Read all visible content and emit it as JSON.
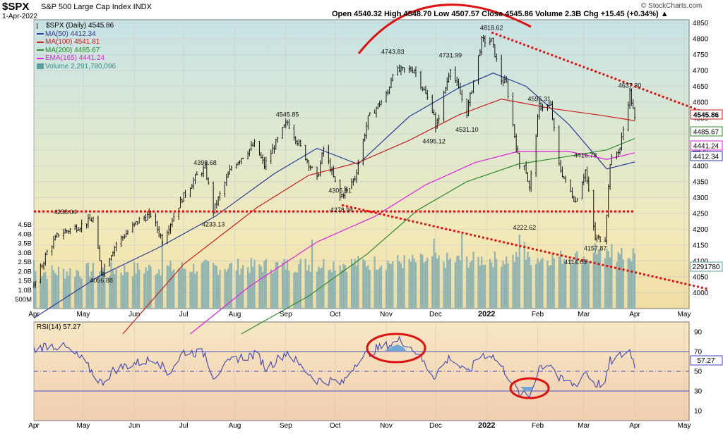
{
  "header": {
    "symbol": "$SPX",
    "name": "S&P 500 Large Cap Index INDX",
    "date": "1-Apr-2022",
    "ohlc": "Open 4540.32  High 4548.70  Low 4507.57  Close 4545.86  Volume 2.3B  Chg +15.45 (+0.34%) ▲",
    "credit": "© StockCharts.com"
  },
  "legend": [
    {
      "text": "$SPX (Daily) 4545.86",
      "color": "#000000",
      "swatch": "bar"
    },
    {
      "text": "MA(50) 4412.34",
      "color": "#2a3b9c",
      "swatch": "line"
    },
    {
      "text": "MA(100) 4541.81",
      "color": "#c81e1e",
      "swatch": "line"
    },
    {
      "text": "MA(200) 4485.67",
      "color": "#2e8b2e",
      "swatch": "line"
    },
    {
      "text": "EMA(165) 4441.24",
      "color": "#e020e0",
      "swatch": "line"
    },
    {
      "text": "Volume 2,291,780,096",
      "color": "#5f9ea0",
      "swatch": "block"
    }
  ],
  "rsi_label": "RSI(14) 57.27",
  "chart_data": [
    {
      "type": "line",
      "title": "$SPX S&P 500 Large Cap Index",
      "ylim": [
        3950,
        4860
      ],
      "x_ticks": [
        "Apr",
        "May",
        "Jun",
        "Jul",
        "Aug",
        "Sep",
        "Oct",
        "Nov",
        "Dec",
        "2022",
        "Feb",
        "Mar",
        "Apr",
        "May"
      ],
      "y_ticks": [
        4000,
        4050,
        4100,
        4150,
        4200,
        4250,
        4300,
        4350,
        4400,
        4450,
        4500,
        4550,
        4600,
        4650,
        4700,
        4750,
        4800,
        4850
      ],
      "price_series": {
        "name": "$SPX (Daily)",
        "points": [
          [
            "2021-04-01",
            4019
          ],
          [
            "2021-04-09",
            4128
          ],
          [
            "2021-04-16",
            4185
          ],
          [
            "2021-04-29",
            4211
          ],
          [
            "2021-05-07",
            4232
          ],
          [
            "2021-05-12",
            4063
          ],
          [
            "2021-05-21",
            4155
          ],
          [
            "2021-06-04",
            4229
          ],
          [
            "2021-06-11",
            4247
          ],
          [
            "2021-06-18",
            4166
          ],
          [
            "2021-06-30",
            4297
          ],
          [
            "2021-07-09",
            4369
          ],
          [
            "2021-07-14",
            4393
          ],
          [
            "2021-07-19",
            4258
          ],
          [
            "2021-07-30",
            4395
          ],
          [
            "2021-08-13",
            4468
          ],
          [
            "2021-08-19",
            4400
          ],
          [
            "2021-08-31",
            4522
          ],
          [
            "2021-09-02",
            4537
          ],
          [
            "2021-09-10",
            4458
          ],
          [
            "2021-09-20",
            4357
          ],
          [
            "2021-09-24",
            4455
          ],
          [
            "2021-10-04",
            4300
          ],
          [
            "2021-10-13",
            4363
          ],
          [
            "2021-10-21",
            4549
          ],
          [
            "2021-11-02",
            4630
          ],
          [
            "2021-11-05",
            4697
          ],
          [
            "2021-11-18",
            4704
          ],
          [
            "2021-11-30",
            4567
          ],
          [
            "2021-12-01",
            4513
          ],
          [
            "2021-12-10",
            4712
          ],
          [
            "2021-12-20",
            4568
          ],
          [
            "2021-12-29",
            4793
          ],
          [
            "2022-01-04",
            4793
          ],
          [
            "2022-01-10",
            4670
          ],
          [
            "2022-01-13",
            4659
          ],
          [
            "2022-01-21",
            4398
          ],
          [
            "2022-01-24",
            4410
          ],
          [
            "2022-01-27",
            4327
          ],
          [
            "2022-02-02",
            4589
          ],
          [
            "2022-02-09",
            4587
          ],
          [
            "2022-02-14",
            4401
          ],
          [
            "2022-02-18",
            4348
          ],
          [
            "2022-02-24",
            4288
          ],
          [
            "2022-03-02",
            4386
          ],
          [
            "2022-03-08",
            4170
          ],
          [
            "2022-03-14",
            4173
          ],
          [
            "2022-03-17",
            4411
          ],
          [
            "2022-03-23",
            4456
          ],
          [
            "2022-03-29",
            4631
          ],
          [
            "2022-04-01",
            4546
          ]
        ]
      },
      "moving_averages": [
        {
          "name": "MA(50)",
          "color": "#2a3b9c",
          "points": [
            [
              "2021-04-01",
              3920
            ],
            [
              "2021-05-10",
              4050
            ],
            [
              "2021-06-15",
              4140
            ],
            [
              "2021-07-20",
              4240
            ],
            [
              "2021-08-25",
              4375
            ],
            [
              "2021-09-20",
              4455
            ],
            [
              "2021-10-15",
              4405
            ],
            [
              "2021-11-15",
              4555
            ],
            [
              "2021-12-15",
              4645
            ],
            [
              "2022-01-05",
              4692
            ],
            [
              "2022-01-25",
              4650
            ],
            [
              "2022-02-20",
              4530
            ],
            [
              "2022-03-15",
              4390
            ],
            [
              "2022-04-01",
              4412
            ]
          ]
        },
        {
          "name": "MA(100)",
          "color": "#c81e1e",
          "points": [
            [
              "2021-05-25",
              3870
            ],
            [
              "2021-07-01",
              4090
            ],
            [
              "2021-08-15",
              4270
            ],
            [
              "2021-09-15",
              4370
            ],
            [
              "2021-10-15",
              4410
            ],
            [
              "2021-11-15",
              4480
            ],
            [
              "2021-12-15",
              4560
            ],
            [
              "2022-01-10",
              4610
            ],
            [
              "2022-02-10",
              4580
            ],
            [
              "2022-03-10",
              4560
            ],
            [
              "2022-04-01",
              4542
            ]
          ]
        },
        {
          "name": "MA(200)",
          "color": "#2e8b2e",
          "points": [
            [
              "2021-08-05",
              3870
            ],
            [
              "2021-09-15",
              3990
            ],
            [
              "2021-10-20",
              4120
            ],
            [
              "2021-11-20",
              4260
            ],
            [
              "2021-12-20",
              4350
            ],
            [
              "2022-01-20",
              4405
            ],
            [
              "2022-02-20",
              4430
            ],
            [
              "2022-03-15",
              4450
            ],
            [
              "2022-04-01",
              4486
            ]
          ]
        },
        {
          "name": "EMA(165)",
          "color": "#e020e0",
          "points": [
            [
              "2021-07-05",
              3870
            ],
            [
              "2021-08-10",
              4020
            ],
            [
              "2021-09-20",
              4160
            ],
            [
              "2021-10-25",
              4240
            ],
            [
              "2021-11-25",
              4340
            ],
            [
              "2021-12-25",
              4410
            ],
            [
              "2022-01-20",
              4445
            ],
            [
              "2022-02-20",
              4445
            ],
            [
              "2022-03-15",
              4420
            ],
            [
              "2022-04-01",
              4441
            ]
          ]
        }
      ],
      "annotations": [
        {
          "date": "2021-04-20",
          "price": 4238.04,
          "label": "4238.04"
        },
        {
          "date": "2021-05-12",
          "price": 4056.88,
          "label": "4056.88"
        },
        {
          "date": "2021-07-14",
          "price": 4393.68,
          "label": "4393.68"
        },
        {
          "date": "2021-07-19",
          "price": 4233.13,
          "label": "4233.13"
        },
        {
          "date": "2021-09-02",
          "price": 4545.85,
          "label": "4545.85"
        },
        {
          "date": "2021-10-04",
          "price": 4305.91,
          "label": "4305.91"
        },
        {
          "date": "2021-10-05",
          "price": 4278.94,
          "label": "4278.94"
        },
        {
          "date": "2021-11-05",
          "price": 4743.83,
          "label": "4743.83"
        },
        {
          "date": "2021-11-30",
          "price": 4495.12,
          "label": "4495.12"
        },
        {
          "date": "2021-12-10",
          "price": 4731.99,
          "label": "4731.99"
        },
        {
          "date": "2021-12-20",
          "price": 4531.1,
          "label": "4531.10"
        },
        {
          "date": "2022-01-04",
          "price": 4818.62,
          "label": "4818.62"
        },
        {
          "date": "2022-01-24",
          "price": 4222.62,
          "label": "4222.62"
        },
        {
          "date": "2022-02-02",
          "price": 4595.31,
          "label": "4595.31"
        },
        {
          "date": "2022-02-24",
          "price": 4114.65,
          "label": "4114.65"
        },
        {
          "date": "2022-03-02",
          "price": 4416.78,
          "label": "4416.78"
        },
        {
          "date": "2022-03-08",
          "price": 4157.87,
          "label": "4157.87"
        },
        {
          "date": "2022-03-29",
          "price": 4637.3,
          "label": "4637.30"
        }
      ],
      "right_axis_tags": [
        {
          "value": 4545.86,
          "label": "4545.86",
          "color": "#c81e1e"
        },
        {
          "value": 4485.67,
          "label": "4485.67",
          "color": "#2e8b2e"
        },
        {
          "value": 4441.24,
          "label": "4441.24",
          "color": "#e020e0"
        },
        {
          "value": 4412.34,
          "label": "4412.34",
          "color": "#2a3b9c"
        }
      ],
      "trendlines": [
        {
          "style": "dotted",
          "color": "#e01010",
          "from": [
            "2021-04-01",
            4256
          ],
          "to": [
            "2022-04-01",
            4256
          ]
        },
        {
          "style": "dotted",
          "color": "#e01010",
          "from": [
            "2022-01-04",
            4820
          ],
          "to": [
            "2022-05-15",
            4565
          ]
        },
        {
          "style": "dotted",
          "color": "#e01010",
          "from": [
            "2021-10-05",
            4276
          ],
          "to": [
            "2022-05-15",
            4012
          ]
        }
      ]
    },
    {
      "type": "bar",
      "title": "Volume",
      "y_ticks": [
        "500M",
        "1.0B",
        "1.5B",
        "2.0B",
        "2.5B",
        "3.0B",
        "3.5B",
        "4.0B",
        "4.5B"
      ],
      "last_value_label": "2291780",
      "ylim": [
        0,
        4.6
      ]
    },
    {
      "type": "line",
      "title": "RSI(14)",
      "ylim": [
        0,
        100
      ],
      "y_ticks": [
        10,
        30,
        50,
        70,
        90
      ],
      "reference_lines": [
        30,
        50,
        70
      ],
      "last_value": 57.27,
      "x_ticks": [
        "Apr",
        "May",
        "Jun",
        "Jul",
        "Aug",
        "Sep",
        "Oct",
        "Nov",
        "Dec",
        "2022",
        "Feb",
        "Mar",
        "Apr",
        "May"
      ],
      "points": [
        [
          "2021-04-01",
          72
        ],
        [
          "2021-04-10",
          77
        ],
        [
          "2021-04-20",
          74
        ],
        [
          "2021-04-30",
          62
        ],
        [
          "2021-05-12",
          38
        ],
        [
          "2021-05-20",
          52
        ],
        [
          "2021-06-01",
          58
        ],
        [
          "2021-06-15",
          63
        ],
        [
          "2021-06-21",
          46
        ],
        [
          "2021-07-01",
          70
        ],
        [
          "2021-07-14",
          68
        ],
        [
          "2021-07-19",
          45
        ],
        [
          "2021-08-01",
          63
        ],
        [
          "2021-08-15",
          67
        ],
        [
          "2021-08-20",
          53
        ],
        [
          "2021-09-02",
          70
        ],
        [
          "2021-09-10",
          55
        ],
        [
          "2021-09-20",
          41
        ],
        [
          "2021-10-01",
          40
        ],
        [
          "2021-10-05",
          37
        ],
        [
          "2021-10-15",
          62
        ],
        [
          "2021-10-25",
          72
        ],
        [
          "2021-11-05",
          78
        ],
        [
          "2021-11-10",
          82
        ],
        [
          "2021-11-18",
          72
        ],
        [
          "2021-11-30",
          45
        ],
        [
          "2021-12-10",
          65
        ],
        [
          "2021-12-20",
          47
        ],
        [
          "2021-12-29",
          67
        ],
        [
          "2022-01-04",
          67
        ],
        [
          "2022-01-13",
          48
        ],
        [
          "2022-01-21",
          27
        ],
        [
          "2022-01-27",
          25
        ],
        [
          "2022-02-02",
          55
        ],
        [
          "2022-02-09",
          58
        ],
        [
          "2022-02-14",
          42
        ],
        [
          "2022-02-24",
          36
        ],
        [
          "2022-03-02",
          50
        ],
        [
          "2022-03-08",
          37
        ],
        [
          "2022-03-14",
          38
        ],
        [
          "2022-03-17",
          60
        ],
        [
          "2022-03-29",
          71
        ],
        [
          "2022-04-01",
          57.27
        ]
      ]
    }
  ]
}
